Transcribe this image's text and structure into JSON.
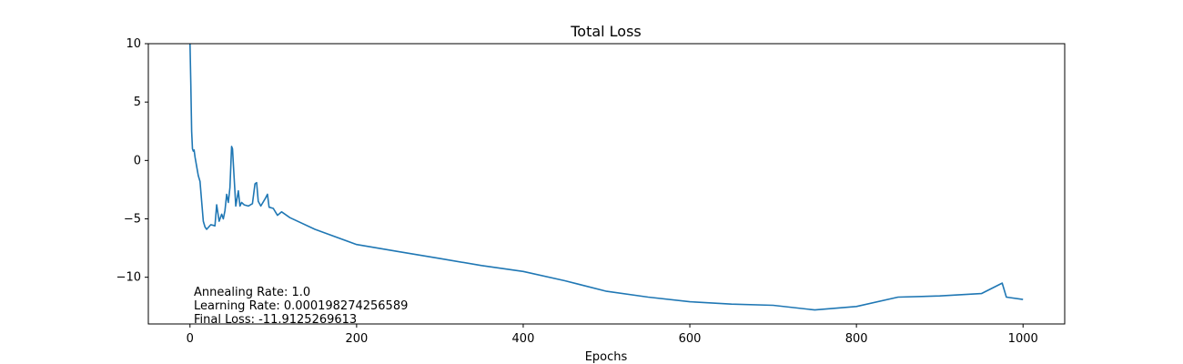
{
  "chart_data": {
    "type": "line",
    "title": "Total Loss",
    "xlabel": "Epochs",
    "ylabel": "",
    "xlim": [
      -50,
      1050
    ],
    "ylim": [
      -14,
      10
    ],
    "xticks": [
      0,
      200,
      400,
      600,
      800,
      1000
    ],
    "yticks": [
      10,
      5,
      0,
      -5,
      -10
    ],
    "ytick_labels": [
      "10",
      "5",
      "0",
      "−5",
      "−10"
    ],
    "grid": false,
    "line_color": "#1f77b4",
    "annotations": [
      "Annealing Rate: 1.0",
      "Learning Rate: 0.000198274256589",
      "Final Loss: -11.9125269613"
    ],
    "series": [
      {
        "x": [
          0,
          1,
          2,
          3,
          4,
          5,
          6,
          8,
          10,
          12,
          14,
          16,
          18,
          20,
          25,
          30,
          32,
          35,
          38,
          40,
          42,
          44,
          46,
          48,
          50,
          51,
          53,
          55,
          58,
          60,
          62,
          65,
          70,
          75,
          78,
          80,
          82,
          85,
          90,
          93,
          95,
          100,
          105,
          110,
          120,
          150,
          200,
          250,
          300,
          350,
          400,
          450,
          500,
          550,
          600,
          650,
          700,
          750,
          800,
          850,
          900,
          950,
          975,
          980,
          1000
        ],
        "y": [
          10,
          6.5,
          2.5,
          1.0,
          0.8,
          0.9,
          0.3,
          -0.5,
          -1.3,
          -1.8,
          -3.5,
          -5.2,
          -5.7,
          -5.9,
          -5.5,
          -5.6,
          -3.8,
          -5.2,
          -4.6,
          -5.0,
          -4.3,
          -2.9,
          -3.6,
          -2.3,
          1.2,
          1.0,
          -1.5,
          -3.9,
          -2.6,
          -3.9,
          -3.6,
          -3.8,
          -3.9,
          -3.7,
          -2.0,
          -1.9,
          -3.5,
          -3.9,
          -3.3,
          -2.9,
          -4.0,
          -4.1,
          -4.7,
          -4.4,
          -4.9,
          -5.9,
          -7.2,
          -7.8,
          -8.4,
          -9.0,
          -9.5,
          -10.3,
          -11.2,
          -11.7,
          -12.1,
          -12.3,
          -12.4,
          -12.8,
          -12.5,
          -11.7,
          -11.6,
          -11.4,
          -10.5,
          -11.7,
          -11.9
        ]
      }
    ]
  }
}
